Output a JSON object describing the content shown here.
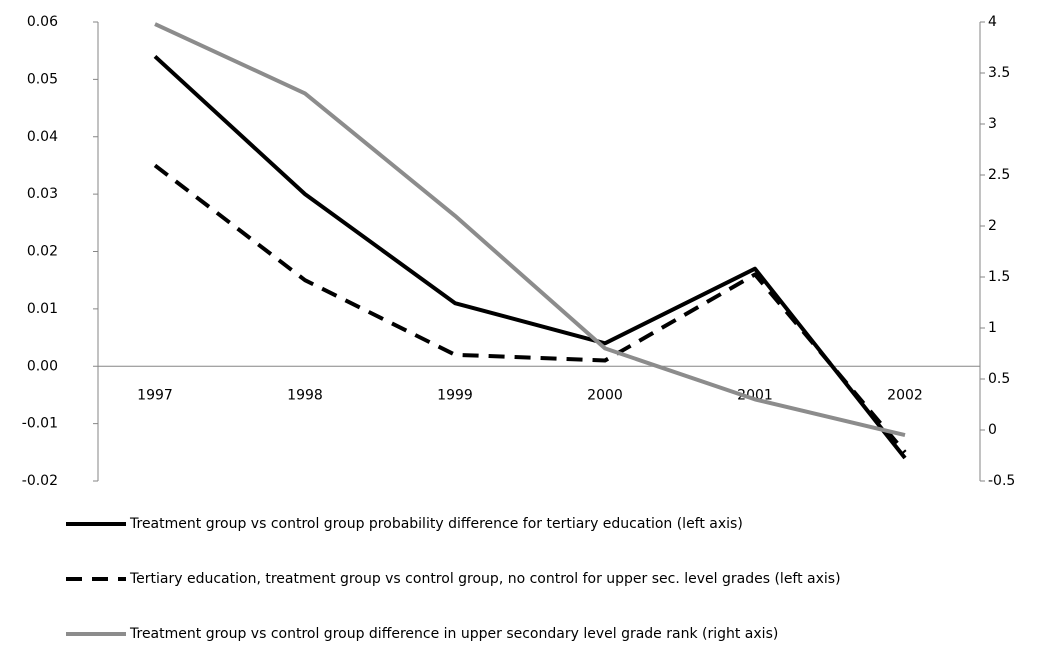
{
  "chart_data": {
    "type": "line",
    "categories": [
      "1997",
      "1998",
      "1999",
      "2000",
      "2001",
      "2002"
    ],
    "ylim": [
      -0.02,
      0.06
    ],
    "yticks": [
      -0.02,
      -0.01,
      {
        "value": 0,
        "label": "0.00"
      },
      0.01,
      0.02,
      0.03,
      0.04,
      0.05,
      0.06
    ],
    "y2lim": [
      -0.5,
      4
    ],
    "y2ticks": [
      -0.5,
      0,
      0.5,
      1,
      1.5,
      2,
      2.5,
      3,
      3.5,
      4
    ],
    "legend": "bottom",
    "series": [
      {
        "name": "Treatment group vs control group probability difference for tertiary education (left axis)",
        "color": "#000000",
        "style": "solid",
        "values": [
          0.054,
          0.03,
          0.011,
          0.004,
          0.017,
          -0.016
        ]
      },
      {
        "name": "Tertiary education, treatment group vs control group, no control for upper sec. level grades (left axis)",
        "color": "#000000",
        "style": "dashed",
        "values": [
          0.035,
          0.015,
          0.002,
          0.001,
          0.016,
          -0.015
        ]
      },
      {
        "name": "Treatment group vs control group difference in upper secondary level grade rank (right axis)",
        "color": "#8c8c8c",
        "style": "solid",
        "axis": "y2",
        "values": [
          3.98,
          3.3,
          2.1,
          0.8,
          0.3,
          -0.05
        ]
      }
    ]
  }
}
